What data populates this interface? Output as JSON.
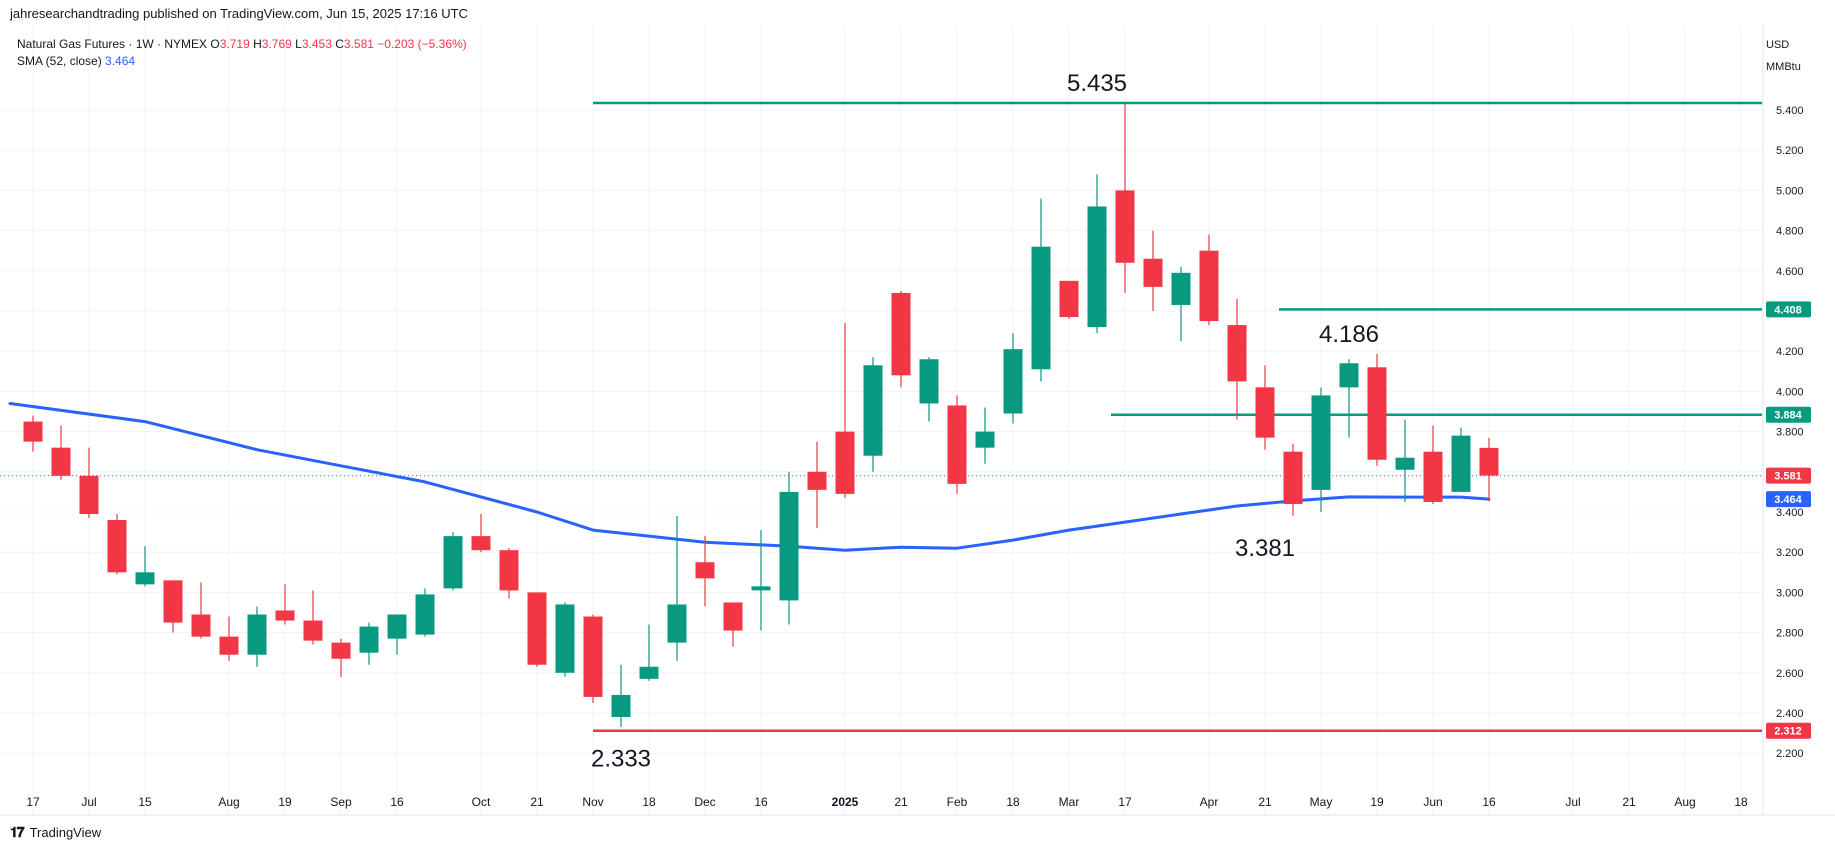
{
  "header": {
    "publisher": "jahresearchandtrading published on TradingView.com, Jun 15, 2025 17:16 UTC",
    "legend_title": "Natural Gas Futures · 1W · NYMEX",
    "ohlc": {
      "o_label": "O",
      "o": "3.719",
      "h_label": "H",
      "h": "3.769",
      "l_label": "L",
      "l": "3.453",
      "c_label": "C",
      "c": "3.581",
      "change": "−0.203 (−5.36%)"
    },
    "sma_label": "SMA (52, close)",
    "sma_value": "3.464"
  },
  "currency": {
    "line1": "USD",
    "line2": "MMBtu"
  },
  "footer": {
    "brand": "TradingView"
  },
  "colors": {
    "up": "#089981",
    "down": "#f23645",
    "sma": "#2962ff",
    "hline_green": "#089981",
    "hline_red": "#f23645",
    "grid": "#f0f3fa",
    "text": "#131722"
  },
  "chart_data": {
    "type": "candlestick",
    "title": "Natural Gas Futures · 1W · NYMEX",
    "ylim": [
      2.0,
      5.7
    ],
    "y_ticks": [
      "5.400",
      "5.200",
      "5.000",
      "4.800",
      "4.600",
      "4.400",
      "4.200",
      "4.000",
      "3.800",
      "3.600",
      "3.400",
      "3.200",
      "3.000",
      "2.800",
      "2.600",
      "2.400",
      "2.200"
    ],
    "x_ticks": [
      {
        "label": "17",
        "week": 0
      },
      {
        "label": "Jul",
        "week": 2
      },
      {
        "label": "15",
        "week": 4
      },
      {
        "label": "Aug",
        "week": 7
      },
      {
        "label": "19",
        "week": 9
      },
      {
        "label": "Sep",
        "week": 11
      },
      {
        "label": "16",
        "week": 13
      },
      {
        "label": "Oct",
        "week": 16
      },
      {
        "label": "21",
        "week": 18
      },
      {
        "label": "Nov",
        "week": 20
      },
      {
        "label": "18",
        "week": 22
      },
      {
        "label": "Dec",
        "week": 24
      },
      {
        "label": "16",
        "week": 26
      },
      {
        "label": "2025",
        "week": 29,
        "bold": true
      },
      {
        "label": "21",
        "week": 31
      },
      {
        "label": "Feb",
        "week": 33
      },
      {
        "label": "18",
        "week": 35
      },
      {
        "label": "Mar",
        "week": 37
      },
      {
        "label": "17",
        "week": 39
      },
      {
        "label": "Apr",
        "week": 42
      },
      {
        "label": "21",
        "week": 44
      },
      {
        "label": "May",
        "week": 46
      },
      {
        "label": "19",
        "week": 48
      },
      {
        "label": "Jun",
        "week": 50
      },
      {
        "label": "16",
        "week": 52
      },
      {
        "label": "Jul",
        "week": 55
      },
      {
        "label": "21",
        "week": 57
      },
      {
        "label": "Aug",
        "week": 59
      },
      {
        "label": "18",
        "week": 61
      }
    ],
    "candles": [
      {
        "o": 3.85,
        "h": 3.88,
        "l": 3.7,
        "c": 3.75
      },
      {
        "o": 3.72,
        "h": 3.83,
        "l": 3.56,
        "c": 3.58
      },
      {
        "o": 3.58,
        "h": 3.72,
        "l": 3.37,
        "c": 3.39
      },
      {
        "o": 3.36,
        "h": 3.39,
        "l": 3.09,
        "c": 3.1
      },
      {
        "o": 3.04,
        "h": 3.23,
        "l": 3.03,
        "c": 3.1
      },
      {
        "o": 3.06,
        "h": 3.06,
        "l": 2.8,
        "c": 2.85
      },
      {
        "o": 2.89,
        "h": 3.05,
        "l": 2.77,
        "c": 2.78
      },
      {
        "o": 2.78,
        "h": 2.88,
        "l": 2.66,
        "c": 2.69
      },
      {
        "o": 2.69,
        "h": 2.93,
        "l": 2.63,
        "c": 2.89
      },
      {
        "o": 2.91,
        "h": 3.04,
        "l": 2.84,
        "c": 2.86
      },
      {
        "o": 2.86,
        "h": 3.01,
        "l": 2.74,
        "c": 2.76
      },
      {
        "o": 2.75,
        "h": 2.77,
        "l": 2.58,
        "c": 2.67
      },
      {
        "o": 2.7,
        "h": 2.85,
        "l": 2.64,
        "c": 2.83
      },
      {
        "o": 2.77,
        "h": 2.86,
        "l": 2.69,
        "c": 2.89
      },
      {
        "o": 2.79,
        "h": 3.02,
        "l": 2.78,
        "c": 2.99
      },
      {
        "o": 3.02,
        "h": 3.3,
        "l": 3.01,
        "c": 3.28
      },
      {
        "o": 3.28,
        "h": 3.39,
        "l": 3.2,
        "c": 3.21
      },
      {
        "o": 3.21,
        "h": 3.22,
        "l": 2.97,
        "c": 3.01
      },
      {
        "o": 3.0,
        "h": 3.0,
        "l": 2.63,
        "c": 2.64
      },
      {
        "o": 2.6,
        "h": 2.95,
        "l": 2.58,
        "c": 2.94
      },
      {
        "o": 2.88,
        "h": 2.89,
        "l": 2.45,
        "c": 2.48
      },
      {
        "o": 2.38,
        "h": 2.64,
        "l": 2.33,
        "c": 2.49
      },
      {
        "o": 2.57,
        "h": 2.84,
        "l": 2.56,
        "c": 2.63
      },
      {
        "o": 2.75,
        "h": 3.38,
        "l": 2.66,
        "c": 2.94
      },
      {
        "o": 3.15,
        "h": 3.28,
        "l": 2.93,
        "c": 3.07
      },
      {
        "o": 2.95,
        "h": 2.95,
        "l": 2.73,
        "c": 2.81
      },
      {
        "o": 3.01,
        "h": 3.31,
        "l": 2.81,
        "c": 3.03
      },
      {
        "o": 2.96,
        "h": 3.6,
        "l": 2.84,
        "c": 3.5
      },
      {
        "o": 3.6,
        "h": 3.75,
        "l": 3.32,
        "c": 3.51
      },
      {
        "o": 3.8,
        "h": 4.34,
        "l": 3.47,
        "c": 3.49
      },
      {
        "o": 3.68,
        "h": 4.17,
        "l": 3.6,
        "c": 4.13
      },
      {
        "o": 4.49,
        "h": 4.5,
        "l": 4.02,
        "c": 4.08
      },
      {
        "o": 3.94,
        "h": 4.17,
        "l": 3.85,
        "c": 4.16
      },
      {
        "o": 3.93,
        "h": 3.98,
        "l": 3.49,
        "c": 3.54
      },
      {
        "o": 3.72,
        "h": 3.92,
        "l": 3.64,
        "c": 3.8
      },
      {
        "o": 3.89,
        "h": 4.29,
        "l": 3.84,
        "c": 4.21
      },
      {
        "o": 4.11,
        "h": 4.96,
        "l": 4.05,
        "c": 4.72
      },
      {
        "o": 4.55,
        "h": 4.55,
        "l": 4.36,
        "c": 4.37
      },
      {
        "o": 4.32,
        "h": 5.08,
        "l": 4.29,
        "c": 4.92
      },
      {
        "o": 5.0,
        "h": 5.435,
        "l": 4.49,
        "c": 4.64
      },
      {
        "o": 4.66,
        "h": 4.8,
        "l": 4.4,
        "c": 4.52
      },
      {
        "o": 4.43,
        "h": 4.62,
        "l": 4.25,
        "c": 4.59
      },
      {
        "o": 4.7,
        "h": 4.78,
        "l": 4.33,
        "c": 4.35
      },
      {
        "o": 4.33,
        "h": 4.46,
        "l": 3.86,
        "c": 4.05
      },
      {
        "o": 4.02,
        "h": 4.13,
        "l": 3.71,
        "c": 3.77
      },
      {
        "o": 3.7,
        "h": 3.74,
        "l": 3.381,
        "c": 3.44
      },
      {
        "o": 3.51,
        "h": 4.02,
        "l": 3.4,
        "c": 3.98
      },
      {
        "o": 4.02,
        "h": 4.16,
        "l": 3.77,
        "c": 4.14
      },
      {
        "o": 4.12,
        "h": 4.186,
        "l": 3.63,
        "c": 3.66
      },
      {
        "o": 3.61,
        "h": 3.86,
        "l": 3.45,
        "c": 3.67
      },
      {
        "o": 3.7,
        "h": 3.83,
        "l": 3.44,
        "c": 3.45
      },
      {
        "o": 3.5,
        "h": 3.82,
        "l": 3.5,
        "c": 3.78
      },
      {
        "o": 3.719,
        "h": 3.769,
        "l": 3.453,
        "c": 3.581
      }
    ],
    "series": [
      {
        "name": "SMA (52, close)",
        "points": [
          [
            0,
            3.94
          ],
          [
            4,
            3.85
          ],
          [
            8,
            3.71
          ],
          [
            11,
            3.63
          ],
          [
            14,
            3.55
          ],
          [
            18,
            3.4
          ],
          [
            20,
            3.31
          ],
          [
            22,
            3.28
          ],
          [
            24,
            3.25
          ],
          [
            27,
            3.23
          ],
          [
            29,
            3.21
          ],
          [
            31,
            3.225
          ],
          [
            33,
            3.22
          ],
          [
            35,
            3.26
          ],
          [
            37,
            3.31
          ],
          [
            39,
            3.35
          ],
          [
            41,
            3.39
          ],
          [
            43,
            3.43
          ],
          [
            45,
            3.455
          ],
          [
            47,
            3.475
          ],
          [
            49,
            3.474
          ],
          [
            51,
            3.474
          ],
          [
            52,
            3.464
          ]
        ]
      }
    ],
    "horizontal_lines": [
      {
        "value": 5.435,
        "from_week": 20.0,
        "to_week": 62.5,
        "color": "#089981"
      },
      {
        "value": 4.408,
        "from_week": 44.5,
        "to_week": 62.5,
        "color": "#089981",
        "label": "4.408"
      },
      {
        "value": 3.884,
        "from_week": 38.5,
        "to_week": 62.5,
        "color": "#089981",
        "label": "3.884"
      },
      {
        "value": 2.312,
        "from_week": 20.0,
        "to_week": 62.5,
        "color": "#f23645",
        "label": "2.312"
      }
    ],
    "price_line": {
      "value": 3.581,
      "label": "3.581",
      "color": "#f23645"
    },
    "sma_tag": {
      "value": 3.464,
      "label": "3.464",
      "color": "#2962ff"
    },
    "annotations": [
      {
        "text": "5.435",
        "week": 38.0,
        "value": 5.435,
        "pos": "above"
      },
      {
        "text": "4.186",
        "week": 47.0,
        "value": 4.186,
        "pos": "above"
      },
      {
        "text": "3.381",
        "week": 44.0,
        "value": 3.381,
        "pos": "below"
      },
      {
        "text": "2.333",
        "week": 21.0,
        "value": 2.333,
        "pos": "below"
      }
    ]
  }
}
